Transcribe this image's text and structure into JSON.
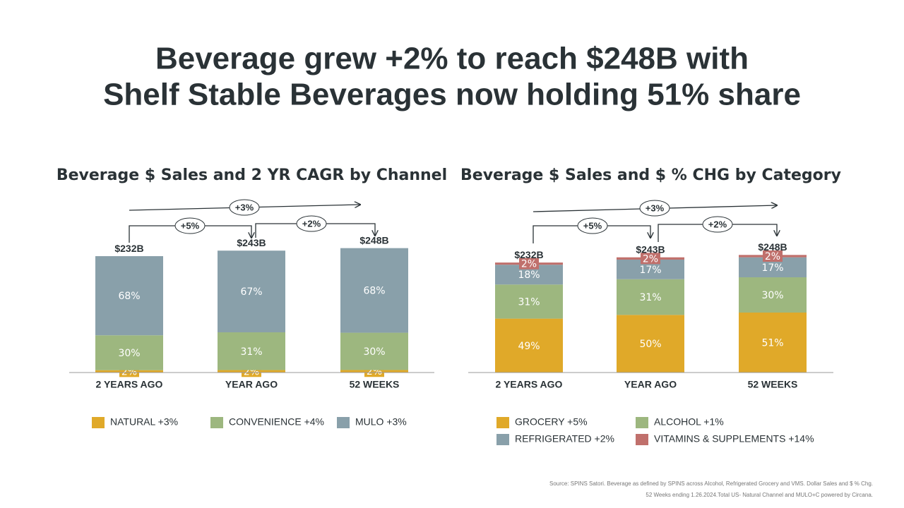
{
  "title": [
    "Beverage grew +2% to reach $248B with",
    "Shelf Stable Beverages now holding 51% share"
  ],
  "footnotes": [
    "Source: SPINS Satori. Beverage as defined by SPINS across Alcohol, Refrigerated Grocery and VMS. Dollar Sales and $ % Chg.",
    "52 Weeks ending 1.26.2024.Total US- Natural Channel and MULO+C powered by Circana."
  ],
  "chart_data": [
    {
      "type": "bar",
      "stacked": true,
      "title": "Beverage $ Sales and 2 YR CAGR by Channel",
      "categories": [
        "2 YEARS AGO",
        "YEAR AGO",
        "52 WEEKS"
      ],
      "totals": {
        "values": [
          232,
          243,
          248
        ],
        "value_labels": [
          "$232B",
          "$243B",
          "$248B"
        ]
      },
      "annotations": [
        "+3%",
        "+5%",
        "+2%"
      ],
      "series": [
        {
          "name": "NATURAL +3%",
          "color": "#e0a929",
          "values": [
            2,
            2,
            2
          ],
          "value_labels": [
            "2%",
            "2%",
            "2%"
          ]
        },
        {
          "name": "CONVENIENCE +4%",
          "color": "#9db77f",
          "values": [
            30,
            31,
            30
          ],
          "value_labels": [
            "30%",
            "31%",
            "30%"
          ]
        },
        {
          "name": "MULO +3%",
          "color": "#89a0aa",
          "values": [
            68,
            67,
            68
          ],
          "value_labels": [
            "68%",
            "67%",
            "68%"
          ]
        }
      ]
    },
    {
      "type": "bar",
      "stacked": true,
      "title": "Beverage $ Sales and $ % CHG by Category",
      "categories": [
        "2 YEARS AGO",
        "YEAR AGO",
        "52 WEEKS"
      ],
      "totals": {
        "values": [
          232,
          243,
          248
        ],
        "value_labels": [
          "$232B",
          "$243B",
          "$248B"
        ]
      },
      "annotations": [
        "+3%",
        "+5%",
        "+2%"
      ],
      "series": [
        {
          "name": "GROCERY +5%",
          "color": "#e0a929",
          "values": [
            49,
            50,
            51
          ],
          "value_labels": [
            "49%",
            "50%",
            "51%"
          ]
        },
        {
          "name": "ALCOHOL +1%",
          "color": "#9db77f",
          "values": [
            31,
            31,
            30
          ],
          "value_labels": [
            "31%",
            "31%",
            "30%"
          ]
        },
        {
          "name": "REFRIGERATED +2%",
          "color": "#89a0aa",
          "values": [
            18,
            17,
            17
          ],
          "value_labels": [
            "18%",
            "17%",
            "17%"
          ]
        },
        {
          "name": "VITAMINS & SUPPLEMENTS +14%",
          "color": "#c0706c",
          "values": [
            2,
            2,
            2
          ],
          "value_labels": [
            "2%",
            "2%",
            "2%"
          ]
        }
      ]
    }
  ]
}
